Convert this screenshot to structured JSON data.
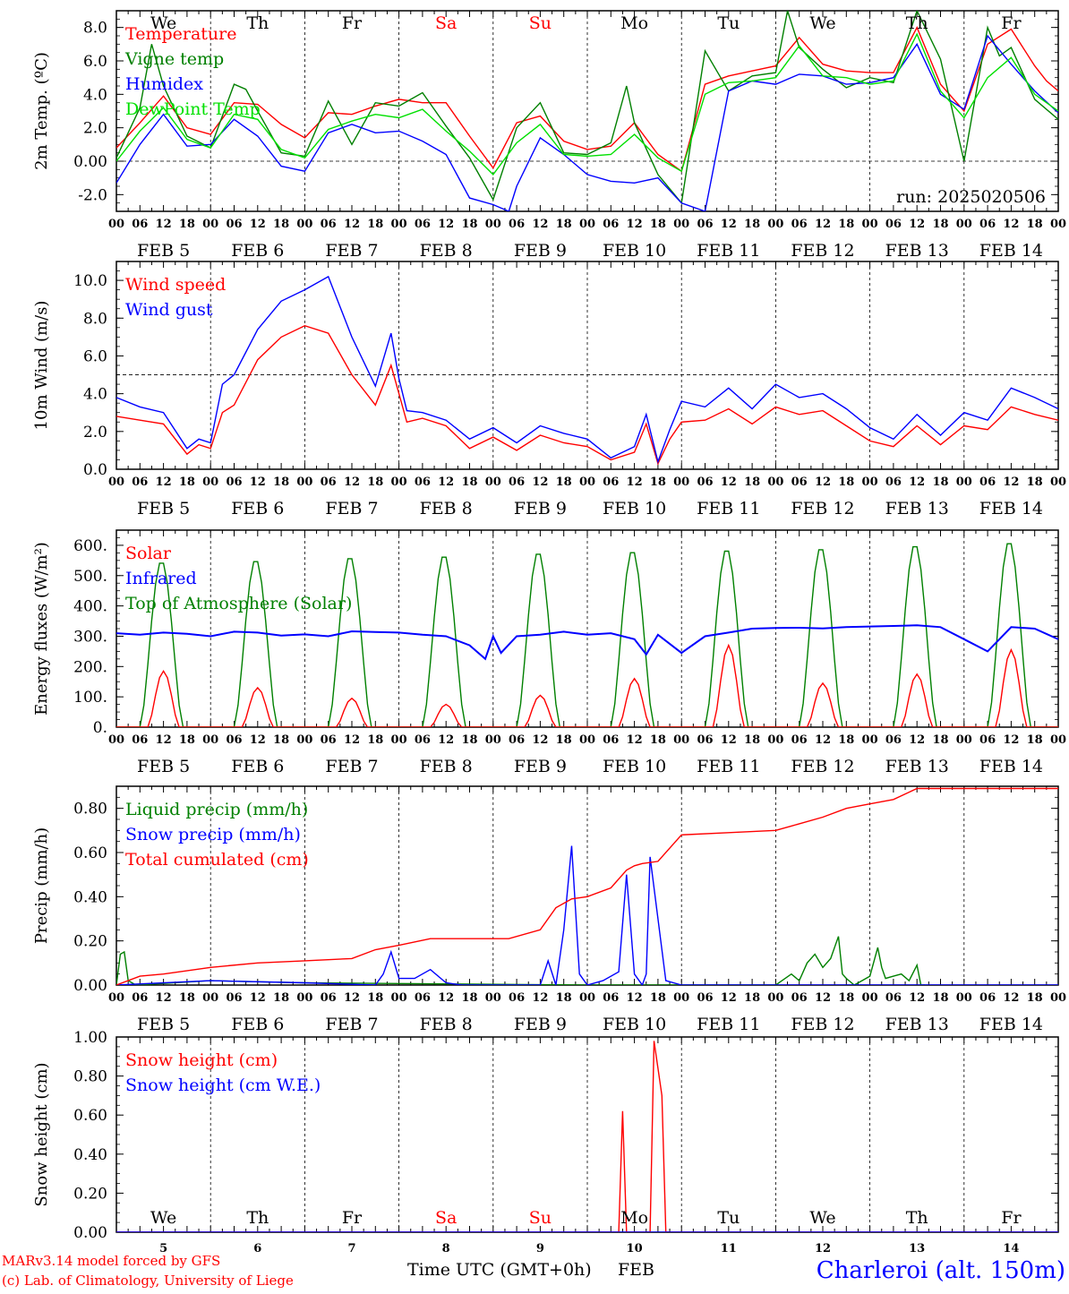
{
  "footer": {
    "model": "MARv3.14 model forced by GFS",
    "lab": "(c) Lab. of Climatology, University of Liege",
    "xlabel": "Time UTC (GMT+0h)",
    "month": "FEB",
    "station": "Charleroi (alt. 150m)"
  },
  "run_label": "run: 2025020506",
  "days": [
    {
      "abbr": "We",
      "date": "FEB 5",
      "num": "5",
      "weekend": false
    },
    {
      "abbr": "Th",
      "date": "FEB 6",
      "num": "6",
      "weekend": false
    },
    {
      "abbr": "Fr",
      "date": "FEB 7",
      "num": "7",
      "weekend": false
    },
    {
      "abbr": "Sa",
      "date": "FEB 8",
      "num": "8",
      "weekend": true
    },
    {
      "abbr": "Su",
      "date": "FEB 9",
      "num": "9",
      "weekend": true
    },
    {
      "abbr": "Mo",
      "date": "FEB 10",
      "num": "10",
      "weekend": false
    },
    {
      "abbr": "Tu",
      "date": "FEB 11",
      "num": "11",
      "weekend": false
    },
    {
      "abbr": "We",
      "date": "FEB 12",
      "num": "12",
      "weekend": false
    },
    {
      "abbr": "Th",
      "date": "FEB 13",
      "num": "13",
      "weekend": false
    },
    {
      "abbr": "Fr",
      "date": "FEB 14",
      "num": "14",
      "weekend": false
    }
  ],
  "hour_ticks": [
    "00",
    "06",
    "12",
    "18"
  ],
  "colors": {
    "red": "#ff0000",
    "green": "#008000",
    "blue": "#0000ff",
    "lightgreen": "#00e000",
    "weekend": "#ff0000",
    "text": "#000000",
    "station": "#0000ff"
  },
  "chart_data": [
    {
      "type": "line",
      "ylabel": "2m Temp. (ºC)",
      "ylim": [
        -3,
        9
      ],
      "yticks": [
        "-2.0",
        "0.00",
        "2.0",
        "4.0",
        "6.0",
        "8.0"
      ],
      "ytick_values": [
        -2,
        0,
        2,
        4,
        6,
        8
      ],
      "dashed_y": 0,
      "x_unit": "hours since FEB 5 00 UTC",
      "series": [
        {
          "name": "Temperature",
          "color": "#ff0000",
          "x": [
            0,
            6,
            12,
            18,
            24,
            30,
            36,
            42,
            48,
            54,
            60,
            66,
            72,
            78,
            84,
            90,
            96,
            102,
            108,
            114,
            120,
            126,
            132,
            138,
            144,
            150,
            156,
            162,
            168,
            174,
            180,
            186,
            192,
            198,
            204,
            210,
            216,
            222,
            228,
            234,
            237,
            240
          ],
          "y": [
            0.8,
            2.3,
            3.9,
            2.0,
            1.6,
            3.5,
            3.4,
            2.2,
            1.4,
            2.9,
            2.8,
            3.3,
            3.7,
            3.5,
            3.5,
            1.5,
            -0.4,
            2.3,
            2.7,
            1.2,
            0.7,
            0.9,
            2.3,
            0.4,
            -0.6,
            4.6,
            5.1,
            5.4,
            5.7,
            7.4,
            5.8,
            5.4,
            5.3,
            5.3,
            8.0,
            4.6,
            3.0,
            7.0,
            7.9,
            5.7,
            4.8,
            4.2
          ]
        },
        {
          "name": "Vigne temp",
          "color": "#008000",
          "x": [
            0,
            6,
            9,
            12,
            18,
            24,
            30,
            33,
            36,
            42,
            48,
            54,
            60,
            66,
            72,
            78,
            84,
            90,
            96,
            102,
            108,
            114,
            120,
            126,
            130,
            132,
            138,
            144,
            150,
            153,
            156,
            162,
            168,
            171,
            174,
            180,
            186,
            192,
            198,
            204,
            210,
            216,
            222,
            225,
            228,
            234,
            240
          ],
          "y": [
            0.2,
            3.2,
            7.0,
            4.5,
            1.5,
            0.8,
            4.6,
            4.3,
            3.0,
            0.5,
            0.3,
            3.6,
            1.0,
            3.5,
            3.3,
            4.1,
            2.1,
            0.2,
            -2.3,
            2.0,
            3.5,
            0.5,
            0.4,
            1.1,
            4.5,
            2.3,
            -0.8,
            -2.5,
            6.6,
            5.4,
            4.2,
            5.1,
            5.3,
            9.0,
            6.8,
            5.5,
            4.4,
            5.0,
            4.7,
            9.0,
            6.1,
            0.0,
            8.0,
            6.3,
            6.8,
            3.7,
            2.5
          ]
        },
        {
          "name": "Humidex",
          "color": "#0000ff",
          "x": [
            0,
            6,
            12,
            18,
            24,
            30,
            36,
            42,
            48,
            54,
            60,
            66,
            72,
            78,
            84,
            90,
            96,
            100,
            102,
            108,
            114,
            120,
            126,
            132,
            138,
            144,
            150,
            156,
            162,
            168,
            174,
            180,
            186,
            192,
            198,
            204,
            210,
            216,
            222,
            228,
            234,
            240
          ],
          "y": [
            -1.3,
            1.0,
            2.8,
            0.9,
            1.0,
            2.5,
            1.5,
            -0.3,
            -0.6,
            1.7,
            2.2,
            1.7,
            1.8,
            1.2,
            0.4,
            -2.2,
            -2.6,
            -3.0,
            -1.5,
            1.4,
            0.4,
            -0.8,
            -1.2,
            -1.3,
            -1.0,
            -2.5,
            -3.0,
            4.2,
            4.8,
            4.6,
            5.2,
            5.1,
            4.6,
            4.7,
            5.0,
            7.0,
            4.0,
            3.1,
            7.5,
            5.8,
            4.2,
            2.9
          ]
        },
        {
          "name": "DewPoint Temp",
          "color": "#00e000",
          "x": [
            0,
            6,
            12,
            18,
            24,
            30,
            36,
            42,
            48,
            54,
            60,
            66,
            72,
            78,
            84,
            90,
            96,
            102,
            108,
            114,
            120,
            126,
            132,
            138,
            144,
            150,
            156,
            162,
            168,
            174,
            180,
            186,
            192,
            198,
            204,
            210,
            216,
            222,
            228,
            234,
            240
          ],
          "y": [
            0.0,
            1.8,
            3.2,
            1.3,
            0.8,
            2.8,
            2.5,
            0.7,
            0.2,
            1.9,
            2.4,
            2.8,
            2.6,
            3.1,
            1.8,
            0.6,
            -0.8,
            1.1,
            2.2,
            0.4,
            0.3,
            0.4,
            1.6,
            0.2,
            -0.6,
            4.0,
            4.7,
            4.8,
            5.0,
            6.9,
            5.1,
            5.0,
            4.6,
            4.8,
            7.6,
            4.2,
            2.6,
            5.0,
            6.2,
            4.0,
            3.0
          ]
        }
      ]
    },
    {
      "type": "line",
      "ylabel": "10m Wind (m/s)",
      "ylim": [
        0,
        11
      ],
      "yticks": [
        "0.0",
        "2.0",
        "4.0",
        "6.0",
        "8.0",
        "10.0"
      ],
      "ytick_values": [
        0,
        2,
        4,
        6,
        8,
        10
      ],
      "dashed_y": 5,
      "series": [
        {
          "name": "Wind speed",
          "color": "#ff0000",
          "x": [
            0,
            6,
            12,
            18,
            21,
            24,
            27,
            30,
            36,
            42,
            48,
            54,
            60,
            66,
            70,
            72,
            74,
            78,
            84,
            90,
            96,
            102,
            108,
            114,
            120,
            126,
            132,
            135,
            138,
            141,
            144,
            150,
            156,
            162,
            168,
            174,
            180,
            186,
            192,
            198,
            204,
            210,
            216,
            222,
            228,
            234,
            240
          ],
          "y": [
            2.8,
            2.6,
            2.4,
            0.8,
            1.3,
            1.1,
            3.0,
            3.4,
            5.8,
            7.0,
            7.6,
            7.2,
            5.0,
            3.4,
            5.5,
            4.0,
            2.5,
            2.7,
            2.3,
            1.1,
            1.7,
            1.0,
            1.8,
            1.4,
            1.2,
            0.5,
            0.9,
            2.4,
            0.3,
            1.6,
            2.5,
            2.6,
            3.2,
            2.4,
            3.3,
            2.9,
            3.1,
            2.3,
            1.5,
            1.2,
            2.3,
            1.3,
            2.3,
            2.1,
            3.3,
            2.9,
            2.6
          ]
        },
        {
          "name": "Wind gust",
          "color": "#0000ff",
          "x": [
            0,
            6,
            12,
            18,
            21,
            24,
            27,
            30,
            36,
            42,
            48,
            54,
            60,
            66,
            70,
            72,
            74,
            78,
            84,
            90,
            96,
            102,
            108,
            114,
            120,
            126,
            132,
            135,
            138,
            141,
            144,
            150,
            156,
            162,
            168,
            174,
            180,
            186,
            192,
            198,
            204,
            210,
            216,
            222,
            228,
            234,
            240
          ],
          "y": [
            3.8,
            3.3,
            3.0,
            1.1,
            1.6,
            1.4,
            4.5,
            5.0,
            7.4,
            8.9,
            9.5,
            10.2,
            7.0,
            4.4,
            7.2,
            4.8,
            3.1,
            3.0,
            2.6,
            1.6,
            2.2,
            1.4,
            2.3,
            1.9,
            1.6,
            0.6,
            1.2,
            2.9,
            0.4,
            2.1,
            3.6,
            3.3,
            4.3,
            3.2,
            4.5,
            3.8,
            4.0,
            3.2,
            2.2,
            1.6,
            2.9,
            1.8,
            3.0,
            2.6,
            4.3,
            3.8,
            3.2
          ]
        }
      ]
    },
    {
      "type": "line",
      "ylabel": "Energy fluxes (W/m²)",
      "ylim": [
        0,
        650
      ],
      "yticks": [
        "0.",
        "100.",
        "200.",
        "300.",
        "400.",
        "500.",
        "600."
      ],
      "ytick_values": [
        0,
        100,
        200,
        300,
        400,
        500,
        600
      ],
      "series": [
        {
          "name": "Solar",
          "color": "#ff0000",
          "peaks": [
            185,
            130,
            95,
            75,
            105,
            160,
            270,
            145,
            175,
            255
          ]
        },
        {
          "name": "Infrared",
          "color": "#0000ff",
          "x": [
            0,
            6,
            12,
            18,
            24,
            30,
            36,
            42,
            48,
            54,
            60,
            66,
            72,
            78,
            84,
            90,
            94,
            96,
            98,
            102,
            108,
            114,
            120,
            126,
            132,
            135,
            138,
            144,
            150,
            156,
            162,
            168,
            174,
            180,
            186,
            192,
            198,
            204,
            210,
            216,
            222,
            228,
            234,
            240
          ],
          "y": [
            310,
            305,
            312,
            308,
            300,
            315,
            312,
            302,
            306,
            300,
            316,
            314,
            312,
            305,
            300,
            270,
            225,
            300,
            245,
            300,
            305,
            315,
            305,
            310,
            290,
            240,
            305,
            245,
            300,
            312,
            325,
            327,
            328,
            326,
            330,
            332,
            334,
            336,
            330,
            290,
            250,
            330,
            325,
            290
          ]
        },
        {
          "name": "Top of Atmosphere (Solar)",
          "color": "#008000",
          "peaks": [
            550,
            555,
            565,
            570,
            580,
            585,
            590,
            595,
            605,
            615
          ]
        }
      ]
    },
    {
      "type": "line",
      "ylabel": "Precip (mm/h)",
      "ylim": [
        0,
        0.9
      ],
      "yticks": [
        "0.00",
        "0.20",
        "0.40",
        "0.60",
        "0.80"
      ],
      "ytick_values": [
        0,
        0.2,
        0.4,
        0.6,
        0.8
      ],
      "series": [
        {
          "name": "Liquid precip (mm/h)",
          "color": "#008000",
          "x": [
            0,
            1,
            2,
            3,
            5,
            24,
            48,
            120,
            168,
            172,
            174,
            176,
            178,
            180,
            182,
            184,
            185,
            186,
            188,
            190,
            192,
            194,
            195,
            196,
            198,
            200,
            202,
            204,
            205,
            206
          ],
          "y": [
            0.0,
            0.14,
            0.15,
            0.02,
            0.0,
            0.02,
            0.01,
            0.0,
            0.0,
            0.05,
            0.02,
            0.1,
            0.14,
            0.08,
            0.12,
            0.22,
            0.05,
            0.03,
            0.0,
            0.02,
            0.04,
            0.17,
            0.08,
            0.03,
            0.04,
            0.05,
            0.02,
            0.09,
            0.0,
            0.0
          ]
        },
        {
          "name": "Snow precip (mm/h)",
          "color": "#0000ff",
          "x": [
            0,
            24,
            48,
            66,
            68,
            70,
            72,
            76,
            80,
            84,
            88,
            96,
            108,
            110,
            112,
            114,
            116,
            118,
            120,
            124,
            128,
            130,
            132,
            134,
            135,
            136,
            140,
            144,
            200,
            240
          ],
          "y": [
            0.0,
            0.02,
            0.01,
            0.0,
            0.05,
            0.15,
            0.03,
            0.03,
            0.07,
            0.01,
            0.0,
            0.0,
            0.0,
            0.11,
            0.0,
            0.25,
            0.63,
            0.05,
            0.0,
            0.02,
            0.06,
            0.5,
            0.05,
            0.0,
            0.05,
            0.58,
            0.02,
            0.0,
            0.0,
            0.0
          ]
        },
        {
          "name": "Total cumulated (cm)",
          "color": "#ff0000",
          "x": [
            0,
            6,
            12,
            24,
            36,
            48,
            60,
            66,
            72,
            80,
            90,
            100,
            108,
            112,
            116,
            120,
            126,
            130,
            132,
            134,
            138,
            144,
            156,
            168,
            172,
            180,
            186,
            192,
            198,
            204,
            216,
            228,
            240
          ],
          "y": [
            0.0,
            0.04,
            0.05,
            0.08,
            0.1,
            0.11,
            0.12,
            0.16,
            0.18,
            0.21,
            0.21,
            0.21,
            0.25,
            0.35,
            0.39,
            0.4,
            0.44,
            0.52,
            0.54,
            0.55,
            0.56,
            0.68,
            0.69,
            0.7,
            0.72,
            0.76,
            0.8,
            0.82,
            0.84,
            0.89,
            0.89,
            0.89,
            0.89
          ]
        }
      ]
    },
    {
      "type": "line",
      "ylabel": "Snow height (cm)",
      "ylim": [
        0,
        1.0
      ],
      "yticks": [
        "0.00",
        "0.20",
        "0.40",
        "0.60",
        "0.80",
        "1.00"
      ],
      "ytick_values": [
        0,
        0.2,
        0.4,
        0.6,
        0.8,
        1.0
      ],
      "series": [
        {
          "name": "Snow height (cm)",
          "color": "#ff0000",
          "x": [
            0,
            128,
            129,
            130,
            136,
            137,
            139,
            140,
            240
          ],
          "y": [
            0,
            0,
            0.62,
            0,
            0,
            0.98,
            0.7,
            0,
            0
          ]
        },
        {
          "name": "Snow height (cm W.E.)",
          "color": "#0000ff",
          "x": [
            0,
            240
          ],
          "y": [
            0,
            0
          ]
        }
      ]
    }
  ]
}
